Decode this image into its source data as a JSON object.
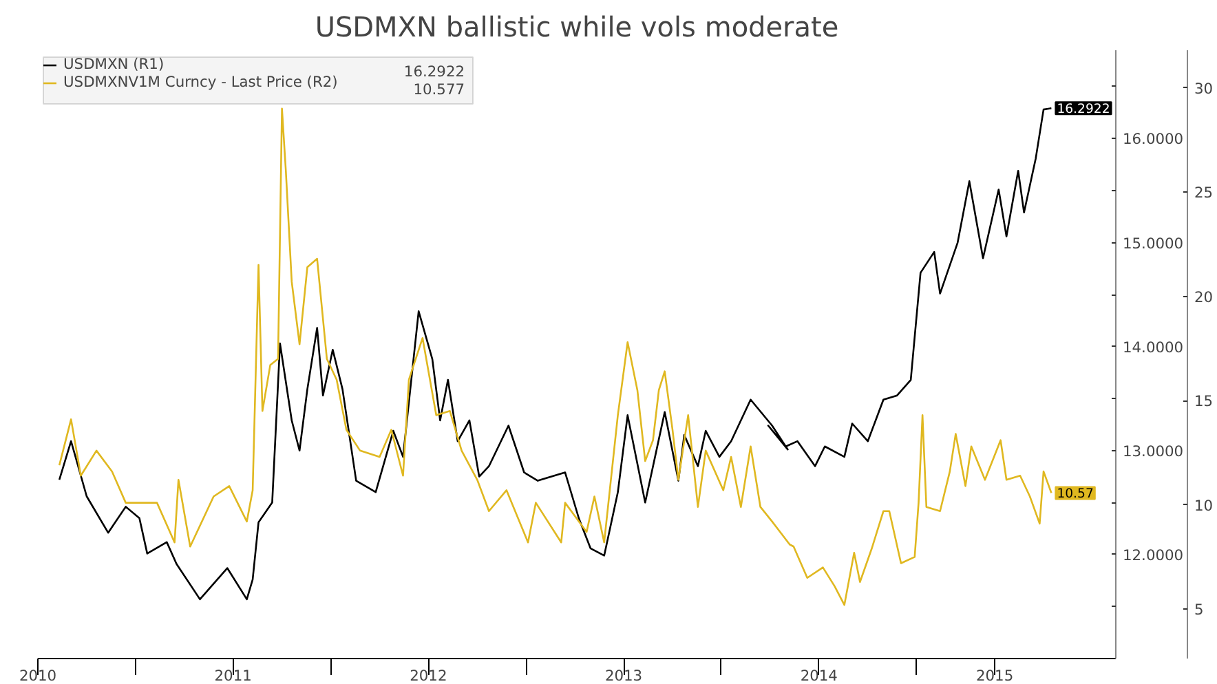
{
  "chart_data": {
    "type": "line",
    "title": "USDMXN ballistic while vols moderate",
    "xlim": [
      2010.5,
      2016.02
    ],
    "ylim": [
      11.0,
      16.85
    ],
    "y2lim": [
      2.63,
      31.8
    ],
    "xticks": [
      {
        "value": 2010.5,
        "label": "2010"
      },
      {
        "value": 2011,
        "label": null
      },
      {
        "value": 2011.5,
        "label": "2011"
      },
      {
        "value": 2012,
        "label": null
      },
      {
        "value": 2012.5,
        "label": "2012"
      },
      {
        "value": 2013,
        "label": null
      },
      {
        "value": 2013.5,
        "label": "2013"
      },
      {
        "value": 2014,
        "label": null
      },
      {
        "value": 2014.5,
        "label": "2014"
      },
      {
        "value": 2015,
        "label": null
      },
      {
        "value": 2015.4,
        "label": "2015"
      }
    ],
    "yticks": [
      {
        "value": 11.5,
        "label": null
      },
      {
        "value": 12,
        "label": "12.0000"
      },
      {
        "value": 12.5,
        "label": null
      },
      {
        "value": 13,
        "label": "13.0000"
      },
      {
        "value": 13.5,
        "label": null
      },
      {
        "value": 14,
        "label": "14.0000"
      },
      {
        "value": 14.5,
        "label": null
      },
      {
        "value": 15,
        "label": "15.0000"
      },
      {
        "value": 15.5,
        "label": null
      },
      {
        "value": 16,
        "label": "16.0000"
      },
      {
        "value": 16.5,
        "label": null
      }
    ],
    "y2ticks": [
      5,
      10,
      15,
      20,
      25,
      30
    ],
    "grid": false,
    "legend": "top left",
    "annotations": [
      "16.2922",
      "10.577"
    ],
    "series": [
      {
        "name": "USDMXN (R1)",
        "color": "#000000",
        "x": [
          2010.61,
          2010.67,
          2010.75,
          2010.86,
          2010.95,
          2011.02,
          2011.06,
          2011.16,
          2011.21,
          2011.33,
          2011.47,
          2011.57,
          2011.6,
          2011.63,
          2011.7,
          2011.74,
          2011.8,
          2011.84,
          2011.88,
          2011.93,
          2011.96,
          2012.01,
          2012.06,
          2012.13,
          2012.23,
          2012.32,
          2012.37,
          2012.45,
          2012.52,
          2012.56,
          2012.6,
          2012.65,
          2012.71,
          2012.76,
          2012.81,
          2012.91,
          2012.99,
          2013.06,
          2013.2,
          2013.27,
          2013.33,
          2013.4,
          2013.47,
          2013.52,
          2013.61,
          2013.71,
          2013.78,
          2013.81,
          2013.88,
          2013.92,
          2013.99,
          2014.05,
          2014.15,
          2014.26,
          2014.34,
          2014.24,
          2014.33,
          2014.39,
          2014.48,
          2014.53,
          2014.63,
          2014.67,
          2014.75,
          2014.83,
          2014.9,
          2014.97,
          2015.02,
          2015.09,
          2015.12,
          2015.21,
          2015.27,
          2015.34,
          2015.42,
          2015.46,
          2015.52,
          2015.55,
          2015.61,
          2015.65,
          2015.69
        ],
        "values": [
          12.72,
          13.09,
          12.56,
          12.21,
          12.46,
          12.35,
          12.01,
          12.12,
          11.91,
          11.57,
          11.87,
          11.57,
          11.76,
          12.31,
          12.5,
          14.03,
          13.29,
          13.0,
          13.59,
          14.18,
          13.53,
          13.97,
          13.59,
          12.71,
          12.6,
          13.19,
          12.94,
          14.34,
          13.88,
          13.29,
          13.68,
          13.09,
          13.29,
          12.75,
          12.85,
          13.24,
          12.79,
          12.71,
          12.79,
          12.35,
          12.06,
          11.99,
          12.6,
          13.34,
          12.5,
          13.37,
          12.71,
          13.15,
          12.85,
          13.19,
          12.94,
          13.09,
          13.49,
          13.24,
          13.01,
          13.24,
          13.04,
          13.09,
          12.85,
          13.04,
          12.94,
          13.26,
          13.09,
          13.49,
          13.53,
          13.68,
          14.71,
          14.91,
          14.51,
          15.0,
          15.59,
          14.85,
          15.51,
          15.06,
          15.69,
          15.29,
          15.81,
          16.28,
          16.2922
        ],
        "value_labels": [
          null,
          null,
          null,
          null,
          null,
          null,
          null,
          null,
          null,
          null,
          null,
          null,
          null,
          null,
          null,
          null,
          null,
          null,
          null,
          null,
          null,
          null,
          null,
          null,
          null,
          null,
          null,
          null,
          null,
          null,
          null,
          null,
          null,
          null,
          null,
          null,
          null,
          null,
          null,
          null,
          null,
          null,
          null,
          null,
          null,
          null,
          null,
          null,
          null,
          null,
          null,
          null,
          null,
          null,
          null,
          null,
          null,
          null,
          null,
          null,
          null,
          null,
          null,
          null,
          null,
          null,
          null,
          null,
          null,
          null,
          null,
          null,
          null,
          null,
          null,
          null,
          null,
          null,
          "16.2922"
        ]
      },
      {
        "name": "USDMXNV1M Curncy - Last Price (R2)",
        "color": "#e0b820",
        "axis": "y2",
        "x": [
          2010.61,
          2010.67,
          2010.72,
          2010.8,
          2010.88,
          2010.95,
          2011.11,
          2011.2,
          2011.22,
          2011.28,
          2011.4,
          2011.48,
          2011.57,
          2011.6,
          2011.63,
          2011.65,
          2011.69,
          2011.73,
          2011.75,
          2011.77,
          2011.8,
          2011.84,
          2011.88,
          2011.93,
          2011.98,
          2012.03,
          2012.08,
          2012.15,
          2012.25,
          2012.31,
          2012.37,
          2012.4,
          2012.47,
          2012.54,
          2012.61,
          2012.67,
          2012.75,
          2012.81,
          2012.9,
          2013.01,
          2013.05,
          2013.18,
          2013.2,
          2013.31,
          2013.35,
          2013.4,
          2013.47,
          2013.52,
          2013.57,
          2013.61,
          2013.65,
          2013.68,
          2013.71,
          2013.75,
          2013.78,
          2013.83,
          2013.88,
          2013.92,
          2014.01,
          2014.05,
          2014.1,
          2014.15,
          2014.2,
          2014.26,
          2014.35,
          2014.37,
          2014.44,
          2014.52,
          2014.58,
          2014.63,
          2014.68,
          2014.71,
          2014.77,
          2014.83,
          2014.86,
          2014.92,
          2014.99,
          2015.01,
          2015.03,
          2015.05,
          2015.12,
          2015.17,
          2015.2,
          2015.25,
          2015.28,
          2015.35,
          2015.43,
          2015.46,
          2015.53,
          2015.58,
          2015.63,
          2015.65,
          2015.69
        ],
        "values": [
          11.9,
          14.1,
          11.4,
          12.6,
          11.6,
          10.1,
          10.1,
          8.2,
          11.2,
          8.0,
          10.4,
          10.9,
          9.2,
          10.7,
          21.5,
          14.5,
          16.7,
          17.0,
          29.0,
          26.0,
          20.7,
          17.7,
          21.4,
          21.8,
          17.0,
          16.0,
          13.6,
          12.6,
          12.3,
          13.6,
          11.4,
          16.0,
          18.0,
          14.3,
          14.5,
          12.6,
          11.2,
          9.7,
          10.7,
          8.2,
          10.1,
          8.2,
          10.1,
          8.7,
          10.4,
          8.2,
          14.3,
          17.8,
          15.5,
          12.1,
          13.1,
          15.5,
          16.4,
          13.6,
          11.2,
          14.3,
          9.9,
          12.6,
          10.7,
          12.3,
          9.9,
          12.8,
          9.9,
          9.2,
          8.1,
          8.0,
          6.5,
          7.0,
          6.1,
          5.2,
          7.7,
          6.3,
          7.9,
          9.7,
          9.7,
          7.2,
          7.5,
          10.1,
          14.3,
          9.9,
          9.7,
          11.6,
          13.4,
          10.9,
          12.8,
          11.2,
          13.1,
          11.2,
          11.4,
          10.4,
          9.1,
          11.6,
          10.57
        ],
        "value_labels": [
          null,
          null,
          null,
          null,
          null,
          null,
          null,
          null,
          null,
          null,
          null,
          null,
          null,
          null,
          null,
          null,
          null,
          null,
          null,
          null,
          null,
          null,
          null,
          null,
          null,
          null,
          null,
          null,
          null,
          null,
          null,
          null,
          null,
          null,
          null,
          null,
          null,
          null,
          null,
          null,
          null,
          null,
          null,
          null,
          null,
          null,
          null,
          null,
          null,
          null,
          null,
          null,
          null,
          null,
          null,
          null,
          null,
          null,
          null,
          null,
          null,
          null,
          null,
          null,
          null,
          null,
          null,
          null,
          null,
          null,
          null,
          null,
          null,
          null,
          null,
          null,
          null,
          null,
          null,
          null,
          null,
          null,
          null,
          null,
          null,
          null,
          null,
          null,
          null,
          null,
          null,
          null,
          "10.57"
        ]
      }
    ]
  }
}
